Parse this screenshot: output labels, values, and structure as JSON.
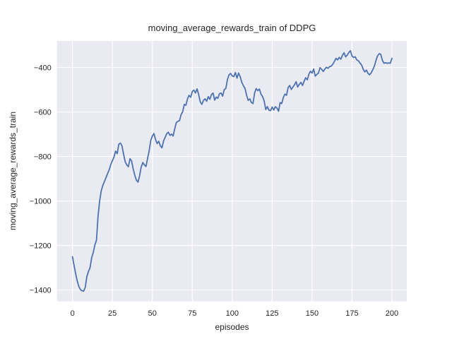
{
  "colors": {
    "figure_background": "#ffffff",
    "axes_background": "#eaeaf2",
    "grid": "#ffffff",
    "text": "#262626",
    "line": "#4c72b0"
  },
  "chart_data": {
    "type": "line",
    "title": "moving_average_rewards_train of DDPG",
    "xlabel": "episodes",
    "ylabel": "moving_average_rewards_train",
    "grid": true,
    "legend": null,
    "xlim": [
      -9.7,
      209.3
    ],
    "ylim": [
      -1451,
      -281
    ],
    "xticks": [
      0,
      25,
      50,
      75,
      100,
      125,
      150,
      175,
      200
    ],
    "xtick_labels": [
      "0",
      "25",
      "50",
      "75",
      "100",
      "125",
      "150",
      "175",
      "200"
    ],
    "yticks": [
      -400,
      -600,
      -800,
      -1000,
      -1200,
      -1400
    ],
    "ytick_labels": [
      "−400",
      "−600",
      "−800",
      "−1000",
      "−1200",
      "−1400"
    ],
    "series": [
      {
        "name": "moving_average_rewards_train",
        "color": "#4c72b0",
        "x_start": 0,
        "x_step": 1,
        "y": [
          -1250,
          -1290,
          -1328,
          -1360,
          -1385,
          -1398,
          -1403,
          -1405,
          -1388,
          -1340,
          -1316,
          -1300,
          -1255,
          -1232,
          -1198,
          -1176,
          -1070,
          -1000,
          -955,
          -930,
          -912,
          -895,
          -876,
          -859,
          -836,
          -818,
          -803,
          -776,
          -787,
          -745,
          -740,
          -752,
          -790,
          -824,
          -838,
          -846,
          -810,
          -820,
          -856,
          -884,
          -906,
          -915,
          -888,
          -848,
          -827,
          -838,
          -845,
          -810,
          -774,
          -728,
          -708,
          -697,
          -724,
          -742,
          -732,
          -752,
          -761,
          -730,
          -714,
          -698,
          -691,
          -705,
          -700,
          -708,
          -676,
          -648,
          -642,
          -639,
          -612,
          -599,
          -566,
          -570,
          -541,
          -525,
          -534,
          -508,
          -502,
          -515,
          -496,
          -522,
          -555,
          -566,
          -548,
          -541,
          -552,
          -531,
          -543,
          -522,
          -515,
          -547,
          -533,
          -539,
          -518,
          -515,
          -529,
          -500,
          -494,
          -455,
          -433,
          -427,
          -438,
          -441,
          -423,
          -448,
          -425,
          -442,
          -467,
          -482,
          -494,
          -525,
          -548,
          -541,
          -557,
          -562,
          -515,
          -495,
          -504,
          -497,
          -520,
          -531,
          -550,
          -589,
          -576,
          -592,
          -594,
          -578,
          -591,
          -576,
          -582,
          -597,
          -558,
          -562,
          -535,
          -520,
          -525,
          -490,
          -481,
          -499,
          -488,
          -478,
          -464,
          -488,
          -476,
          -467,
          -481,
          -462,
          -446,
          -456,
          -430,
          -417,
          -425,
          -407,
          -439,
          -431,
          -425,
          -401,
          -409,
          -418,
          -407,
          -399,
          -404,
          -396,
          -394,
          -385,
          -373,
          -359,
          -366,
          -355,
          -363,
          -345,
          -334,
          -352,
          -345,
          -333,
          -325,
          -349,
          -355,
          -352,
          -366,
          -370,
          -380,
          -389,
          -408,
          -420,
          -412,
          -426,
          -433,
          -424,
          -410,
          -394,
          -368,
          -348,
          -338,
          -341,
          -368,
          -381,
          -379,
          -381,
          -380,
          -381,
          -359
        ]
      }
    ]
  }
}
